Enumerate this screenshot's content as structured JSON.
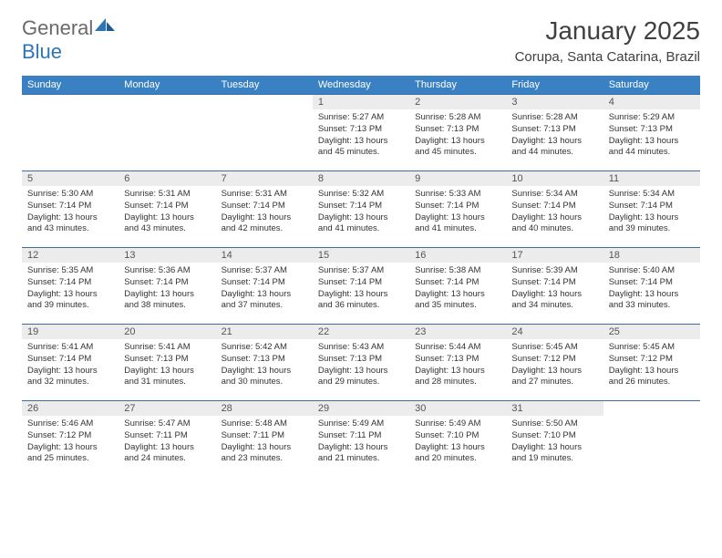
{
  "logo": {
    "text1": "General",
    "text2": "Blue"
  },
  "title": "January 2025",
  "location": "Corupa, Santa Catarina, Brazil",
  "colors": {
    "header_bg": "#3a81c4",
    "header_text": "#ffffff",
    "daynum_bg": "#ececec",
    "daynum_text": "#555555",
    "border": "#3a6ea5",
    "logo_gray": "#6a6a6a",
    "logo_blue": "#2e75b6"
  },
  "day_headers": [
    "Sunday",
    "Monday",
    "Tuesday",
    "Wednesday",
    "Thursday",
    "Friday",
    "Saturday"
  ],
  "weeks": [
    [
      null,
      null,
      null,
      {
        "n": "1",
        "sunrise": "5:27 AM",
        "sunset": "7:13 PM",
        "dl": "13 hours and 45 minutes."
      },
      {
        "n": "2",
        "sunrise": "5:28 AM",
        "sunset": "7:13 PM",
        "dl": "13 hours and 45 minutes."
      },
      {
        "n": "3",
        "sunrise": "5:28 AM",
        "sunset": "7:13 PM",
        "dl": "13 hours and 44 minutes."
      },
      {
        "n": "4",
        "sunrise": "5:29 AM",
        "sunset": "7:13 PM",
        "dl": "13 hours and 44 minutes."
      }
    ],
    [
      {
        "n": "5",
        "sunrise": "5:30 AM",
        "sunset": "7:14 PM",
        "dl": "13 hours and 43 minutes."
      },
      {
        "n": "6",
        "sunrise": "5:31 AM",
        "sunset": "7:14 PM",
        "dl": "13 hours and 43 minutes."
      },
      {
        "n": "7",
        "sunrise": "5:31 AM",
        "sunset": "7:14 PM",
        "dl": "13 hours and 42 minutes."
      },
      {
        "n": "8",
        "sunrise": "5:32 AM",
        "sunset": "7:14 PM",
        "dl": "13 hours and 41 minutes."
      },
      {
        "n": "9",
        "sunrise": "5:33 AM",
        "sunset": "7:14 PM",
        "dl": "13 hours and 41 minutes."
      },
      {
        "n": "10",
        "sunrise": "5:34 AM",
        "sunset": "7:14 PM",
        "dl": "13 hours and 40 minutes."
      },
      {
        "n": "11",
        "sunrise": "5:34 AM",
        "sunset": "7:14 PM",
        "dl": "13 hours and 39 minutes."
      }
    ],
    [
      {
        "n": "12",
        "sunrise": "5:35 AM",
        "sunset": "7:14 PM",
        "dl": "13 hours and 39 minutes."
      },
      {
        "n": "13",
        "sunrise": "5:36 AM",
        "sunset": "7:14 PM",
        "dl": "13 hours and 38 minutes."
      },
      {
        "n": "14",
        "sunrise": "5:37 AM",
        "sunset": "7:14 PM",
        "dl": "13 hours and 37 minutes."
      },
      {
        "n": "15",
        "sunrise": "5:37 AM",
        "sunset": "7:14 PM",
        "dl": "13 hours and 36 minutes."
      },
      {
        "n": "16",
        "sunrise": "5:38 AM",
        "sunset": "7:14 PM",
        "dl": "13 hours and 35 minutes."
      },
      {
        "n": "17",
        "sunrise": "5:39 AM",
        "sunset": "7:14 PM",
        "dl": "13 hours and 34 minutes."
      },
      {
        "n": "18",
        "sunrise": "5:40 AM",
        "sunset": "7:14 PM",
        "dl": "13 hours and 33 minutes."
      }
    ],
    [
      {
        "n": "19",
        "sunrise": "5:41 AM",
        "sunset": "7:14 PM",
        "dl": "13 hours and 32 minutes."
      },
      {
        "n": "20",
        "sunrise": "5:41 AM",
        "sunset": "7:13 PM",
        "dl": "13 hours and 31 minutes."
      },
      {
        "n": "21",
        "sunrise": "5:42 AM",
        "sunset": "7:13 PM",
        "dl": "13 hours and 30 minutes."
      },
      {
        "n": "22",
        "sunrise": "5:43 AM",
        "sunset": "7:13 PM",
        "dl": "13 hours and 29 minutes."
      },
      {
        "n": "23",
        "sunrise": "5:44 AM",
        "sunset": "7:13 PM",
        "dl": "13 hours and 28 minutes."
      },
      {
        "n": "24",
        "sunrise": "5:45 AM",
        "sunset": "7:12 PM",
        "dl": "13 hours and 27 minutes."
      },
      {
        "n": "25",
        "sunrise": "5:45 AM",
        "sunset": "7:12 PM",
        "dl": "13 hours and 26 minutes."
      }
    ],
    [
      {
        "n": "26",
        "sunrise": "5:46 AM",
        "sunset": "7:12 PM",
        "dl": "13 hours and 25 minutes."
      },
      {
        "n": "27",
        "sunrise": "5:47 AM",
        "sunset": "7:11 PM",
        "dl": "13 hours and 24 minutes."
      },
      {
        "n": "28",
        "sunrise": "5:48 AM",
        "sunset": "7:11 PM",
        "dl": "13 hours and 23 minutes."
      },
      {
        "n": "29",
        "sunrise": "5:49 AM",
        "sunset": "7:11 PM",
        "dl": "13 hours and 21 minutes."
      },
      {
        "n": "30",
        "sunrise": "5:49 AM",
        "sunset": "7:10 PM",
        "dl": "13 hours and 20 minutes."
      },
      {
        "n": "31",
        "sunrise": "5:50 AM",
        "sunset": "7:10 PM",
        "dl": "13 hours and 19 minutes."
      },
      null
    ]
  ],
  "labels": {
    "sunrise": "Sunrise:",
    "sunset": "Sunset:",
    "daylight": "Daylight:"
  }
}
